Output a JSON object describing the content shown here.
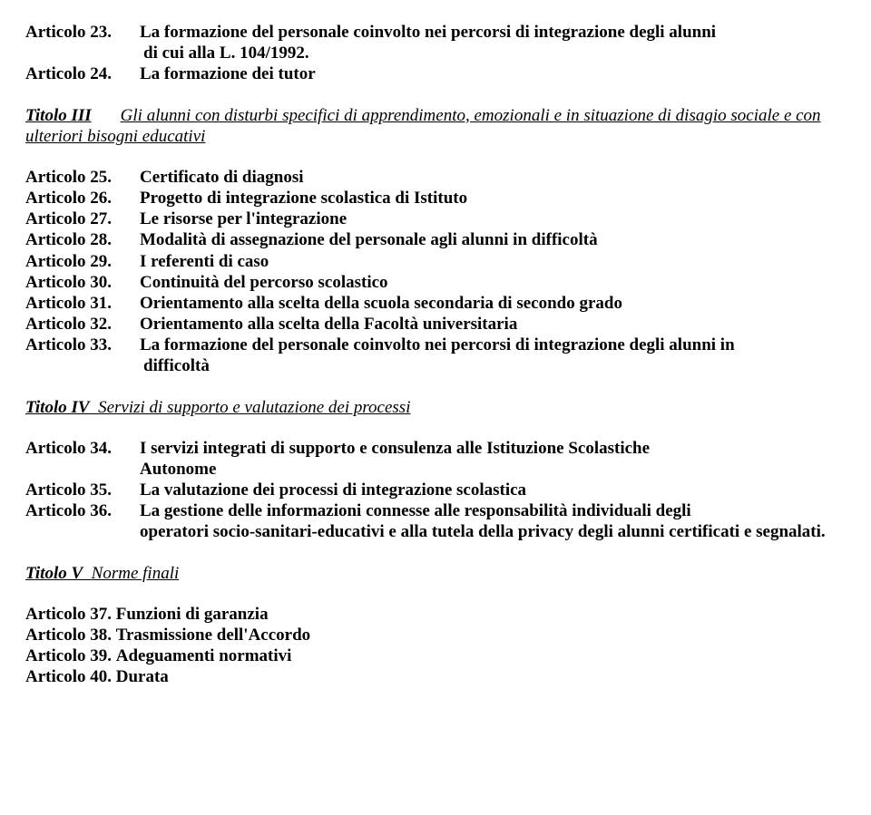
{
  "a23_lab": "Articolo  23.",
  "a23_txt1": "La formazione del personale coinvolto nei percorsi di integrazione degli alunni",
  "a23_txt2": "di cui alla L. 104/1992.",
  "a24_lab": "Articolo  24.",
  "a24_txt": "La formazione dei tutor",
  "t3_prefix": "Titolo III",
  "t3_rest": "Gli alunni  con  disturbi specifici di apprendimento, emozionali e in situazione di  disagio sociale e con ulteriori bisogni educativi",
  "a25_lab": "Articolo  25.",
  "a25_txt": "Certificato di diagnosi",
  "a26_lab": "Articolo  26.",
  "a26_txt": "Progetto di integrazione scolastica di Istituto",
  "a27_lab": "Articolo  27.",
  "a27_txt": "Le risorse per l'integrazione",
  "a28_lab": "Articolo  28.",
  "a28_txt": "Modalità di assegnazione del personale agli alunni in difficoltà",
  "a29_lab": "Articolo  29.",
  "a29_txt": "I referenti di caso",
  "a30_lab": "Articolo  30.",
  "a30_txt": "Continuità del percorso scolastico",
  "a31_lab": "Articolo  31.",
  "a31_txt": "Orientamento alla scelta della scuola secondaria di secondo grado",
  "a32_lab": "Articolo  32.",
  "a32_txt": "Orientamento alla scelta della Facoltà universitaria",
  "a33_lab": "Articolo  33.",
  "a33_txt1": "La formazione del personale coinvolto nei percorsi di integrazione degli alunni in",
  "a33_txt2": "difficoltà",
  "t4_prefix": "Titolo IV",
  "t4_rest": "Servizi di supporto e valutazione  dei processi ",
  "a34_lab": "Articolo  34.",
  "a34_txt1": "I servizi integrati di supporto e consulenza alle Istituzione Scolastiche",
  "a34_txt2": "Autonome",
  "a35_lab": "Articolo  35.",
  "a35_txt": "La valutazione dei processi di integrazione scolastica",
  "a36_lab": "Articolo  36.",
  "a36_txt1": "La gestione delle informazioni connesse alle responsabilità individuali degli",
  "a36_txt2": "operatori socio-sanitari-educativi  e alla tutela della privacy degli alunni certificati  e segnalati.",
  "t5_prefix": "Titolo V",
  "t5_rest": "Norme finali",
  "a37_lab": "Articolo 37.",
  "a37_txt": "Funzioni di garanzia",
  "a38_lab": "Articolo 38.",
  "a38_txt": "Trasmissione dell'Accordo",
  "a39_lab": "Articolo 39.",
  "a39_txt": "Adeguamenti normativi",
  "a40_lab": "Articolo 40.",
  "a40_txt": "Durata"
}
